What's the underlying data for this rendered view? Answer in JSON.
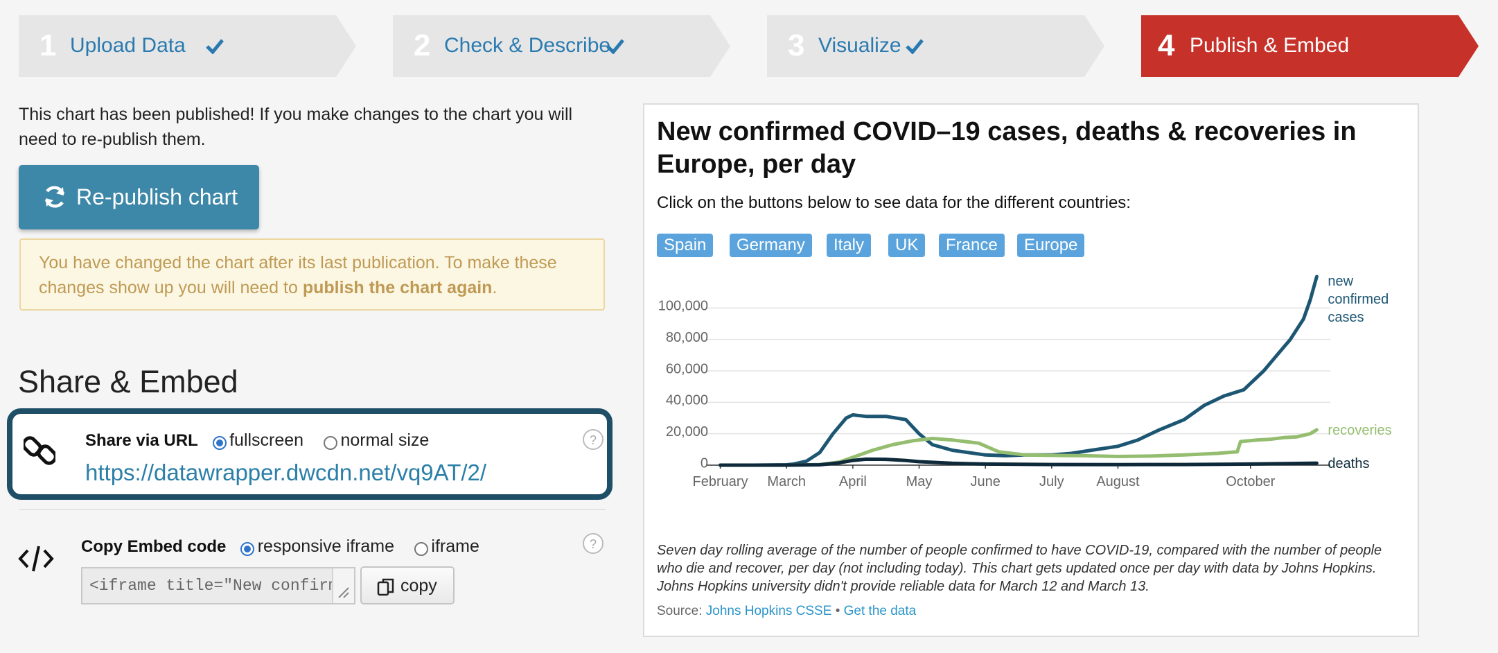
{
  "steps": [
    {
      "number": "1",
      "label": "Upload Data",
      "status": "done"
    },
    {
      "number": "2",
      "label": "Check & Describe",
      "status": "done"
    },
    {
      "number": "3",
      "label": "Visualize",
      "status": "done"
    },
    {
      "number": "4",
      "label": "Publish & Embed",
      "status": "active"
    }
  ],
  "publish": {
    "message": "This chart has been published! If you make changes to the chart you will need to re-publish them.",
    "republish_label": "Re-publish chart",
    "warning_text": "You have changed the chart after its last publication. To make these changes show up you will need to",
    "warning_bold": "publish the chart again",
    "warning_end": "."
  },
  "share": {
    "section_title": "Share & Embed",
    "url_label": "Share via URL",
    "option_fullscreen": "fullscreen",
    "option_normal": "normal size",
    "selected": "fullscreen",
    "url": "https://datawrapper.dwcdn.net/vq9AT/2/",
    "help": "?"
  },
  "embed": {
    "label": "Copy Embed code",
    "option_responsive": "responsive iframe",
    "option_iframe": "iframe",
    "selected": "responsive iframe",
    "code": "<iframe title=\"New confirmed",
    "copy_label": "copy",
    "help": "?"
  },
  "chart": {
    "title": "New confirmed COVID–19 cases, deaths & recoveries in Europe, per day",
    "intro": "Click on the buttons below to see data for the different countries:",
    "buttons": [
      "Spain",
      "Germany",
      "Italy",
      "UK",
      "France",
      "Europe"
    ],
    "notes": "Seven day rolling average of the number of people confirmed to have COVID-19, compared with the number of people who die and recover, per day (not including today). This chart gets updated once per day with data by Johns Hopkins. Johns Hopkins university didn't provide reliable data for March 12 and March 13.",
    "source_prefix": "Source:",
    "source_name": "Johns Hopkins CSSE",
    "source_sep": "•",
    "get_data": "Get the data"
  },
  "colors": {
    "accent": "#3d87a8",
    "active_step": "#c63129",
    "cases": "#1d5673",
    "recoveries": "#94bd6f",
    "deaths": "#0e2a3a",
    "pill": "#5aa3dc"
  },
  "chart_data": {
    "type": "line",
    "x_unit": "month index (0 = 1 February 2020)",
    "x_ticks": [
      {
        "value": 0,
        "label": "February"
      },
      {
        "value": 1,
        "label": "March"
      },
      {
        "value": 2,
        "label": "April"
      },
      {
        "value": 3,
        "label": "May"
      },
      {
        "value": 4,
        "label": "June"
      },
      {
        "value": 5,
        "label": "July"
      },
      {
        "value": 6,
        "label": "August"
      },
      {
        "value": 8,
        "label": "October"
      }
    ],
    "y_ticks": [
      0,
      20000,
      40000,
      60000,
      80000,
      100000
    ],
    "y_tick_labels": [
      "0",
      "20,000",
      "40,000",
      "60,000",
      "80,000",
      "100,000"
    ],
    "ylim": [
      0,
      120000
    ],
    "xlim": [
      -0.1,
      9.1
    ],
    "grid": true,
    "series": [
      {
        "name": "new confirmed cases",
        "label_lines": [
          "new",
          "confirmed",
          "cases"
        ],
        "color": "#1d5673",
        "x": [
          0,
          0.5,
          1.0,
          1.1,
          1.3,
          1.5,
          1.7,
          1.9,
          2.0,
          2.2,
          2.5,
          2.8,
          3.0,
          3.2,
          3.5,
          4.0,
          4.3,
          4.6,
          5.0,
          5.3,
          5.6,
          6.0,
          6.3,
          6.6,
          7.0,
          7.3,
          7.6,
          7.9,
          8.0,
          8.2,
          8.4,
          8.6,
          8.8,
          8.9,
          9.0
        ],
        "y": [
          0,
          0,
          200,
          600,
          2500,
          8000,
          20000,
          30000,
          32000,
          31000,
          31000,
          29000,
          20000,
          13000,
          9500,
          6500,
          6000,
          6500,
          6500,
          7500,
          9500,
          12000,
          16000,
          22000,
          29000,
          38000,
          44000,
          48000,
          52000,
          60000,
          70000,
          80000,
          93000,
          105000,
          120000
        ]
      },
      {
        "name": "recoveries",
        "label_lines": [
          "recoveries"
        ],
        "color": "#94bd6f",
        "x": [
          0,
          1.0,
          1.5,
          1.8,
          2.0,
          2.3,
          2.6,
          2.9,
          3.2,
          3.5,
          3.9,
          4.2,
          4.6,
          5.0,
          5.5,
          6.0,
          6.5,
          7.0,
          7.5,
          7.8,
          7.85,
          8.1,
          8.3,
          8.5,
          8.7,
          8.9,
          9.0
        ],
        "y": [
          0,
          0,
          300,
          2000,
          5000,
          9500,
          13000,
          15500,
          17000,
          16000,
          14000,
          8500,
          6500,
          6200,
          6000,
          5500,
          5800,
          6500,
          7500,
          8500,
          15000,
          16000,
          16500,
          17500,
          18000,
          20000,
          22500
        ]
      },
      {
        "name": "deaths",
        "label_lines": [
          "deaths"
        ],
        "color": "#0e2a3a",
        "x": [
          0,
          1.0,
          1.5,
          1.8,
          2.0,
          2.2,
          2.5,
          2.8,
          3.0,
          3.5,
          4.0,
          5.0,
          6.0,
          7.0,
          8.0,
          8.5,
          9.0
        ],
        "y": [
          0,
          0,
          200,
          1500,
          3000,
          3800,
          3700,
          3000,
          2200,
          1200,
          700,
          400,
          350,
          400,
          700,
          1000,
          1300
        ]
      }
    ]
  }
}
